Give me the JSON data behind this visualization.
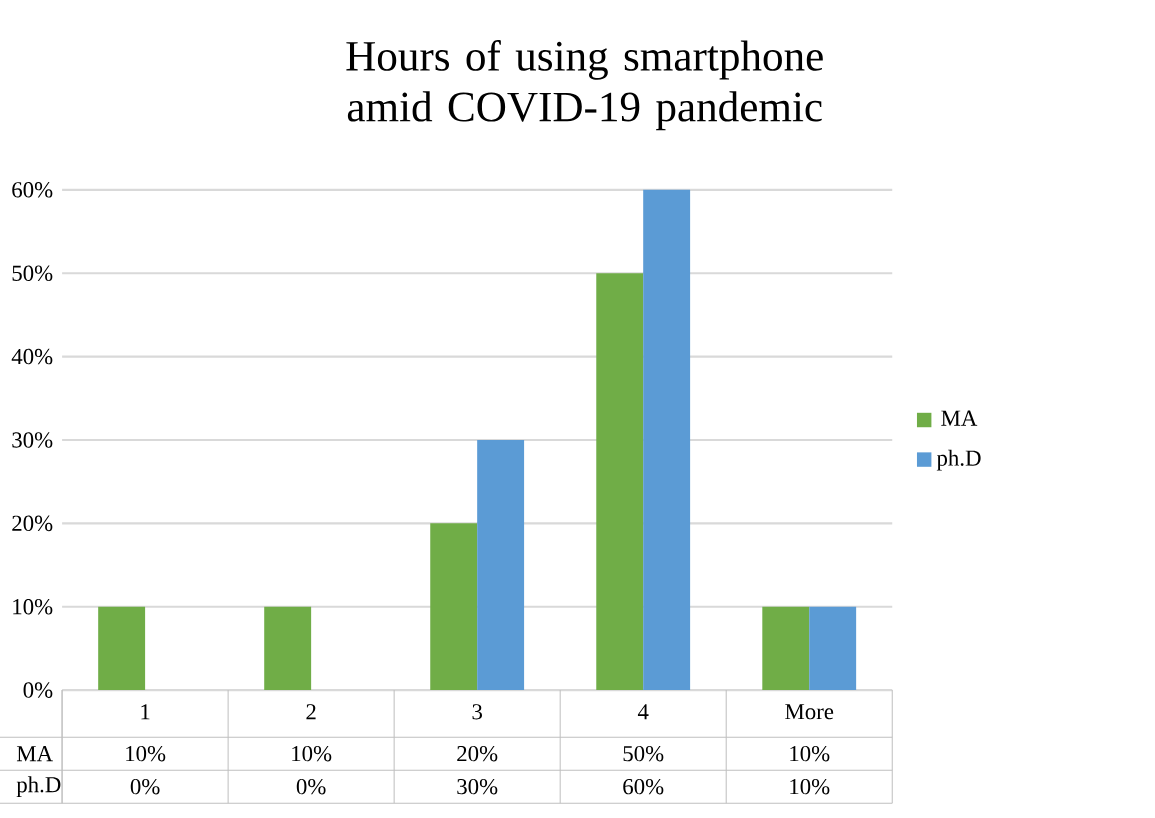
{
  "chart_data": {
    "type": "bar",
    "title": "Hours of using  smartphone amid COVID-19 pandemic",
    "categories": [
      "1",
      "2",
      "3",
      "4",
      "More"
    ],
    "series": [
      {
        "name": "MA",
        "color": "#70ad47",
        "values": [
          10,
          10,
          20,
          50,
          10
        ],
        "value_labels": [
          "10%",
          "10%",
          "20%",
          "50%",
          "10%"
        ]
      },
      {
        "name": "ph.D",
        "color": "#5b9bd5",
        "values": [
          0,
          0,
          30,
          60,
          10
        ],
        "value_labels": [
          "0%",
          "0%",
          "30%",
          "60%",
          "10%"
        ]
      }
    ],
    "ylim": [
      0,
      60
    ],
    "yticks": [
      {
        "value": 0,
        "label": "0%"
      },
      {
        "value": 10,
        "label": "10%"
      },
      {
        "value": 20,
        "label": "20%"
      },
      {
        "value": 30,
        "label": "30%"
      },
      {
        "value": 40,
        "label": "40%"
      },
      {
        "value": 50,
        "label": "50%"
      },
      {
        "value": 60,
        "label": "60%"
      }
    ],
    "grid": "y",
    "legend": "right"
  }
}
